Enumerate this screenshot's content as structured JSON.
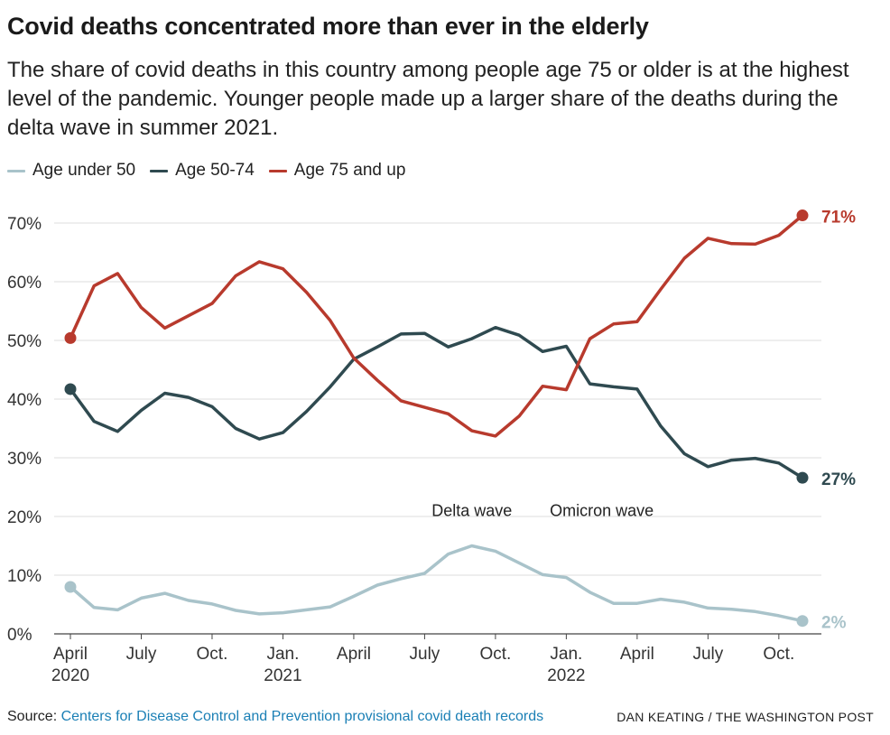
{
  "title": "Covid deaths concentrated more than ever in the elderly",
  "subtitle": "The share of covid deaths in this country among people age 75 or older is at the highest level of the pandemic. Younger people made up a larger share of the deaths during the delta wave in summer 2021.",
  "footer": {
    "source_label": "Source:",
    "source_link": "Centers for Disease Control and Prevention provisional covid death records",
    "credit": "DAN KEATING / THE WASHINGTON POST"
  },
  "chart_data": {
    "type": "line",
    "ylim": [
      0,
      70
    ],
    "yticks": [
      0,
      10,
      20,
      30,
      40,
      50,
      60,
      70
    ],
    "ytick_labels": [
      "0%",
      "10%",
      "20%",
      "30%",
      "40%",
      "50%",
      "60%",
      "70%"
    ],
    "xlim": [
      0,
      31
    ],
    "xticks": [
      {
        "x": 0,
        "label": "April",
        "year": "2020"
      },
      {
        "x": 3,
        "label": "July",
        "year": ""
      },
      {
        "x": 6,
        "label": "Oct.",
        "year": ""
      },
      {
        "x": 9,
        "label": "Jan.",
        "year": "2021"
      },
      {
        "x": 12,
        "label": "April",
        "year": ""
      },
      {
        "x": 15,
        "label": "July",
        "year": ""
      },
      {
        "x": 18,
        "label": "Oct.",
        "year": ""
      },
      {
        "x": 21,
        "label": "Jan.",
        "year": "2022"
      },
      {
        "x": 24,
        "label": "April",
        "year": ""
      },
      {
        "x": 27,
        "label": "July",
        "year": ""
      },
      {
        "x": 30,
        "label": "Oct.",
        "year": ""
      }
    ],
    "grid": true,
    "legend_position": "top-left",
    "annotations": [
      {
        "text": "Delta wave",
        "x": 17,
        "y": 21
      },
      {
        "text": "Omicron wave",
        "x": 22.5,
        "y": 21
      }
    ],
    "series": [
      {
        "name": "Age under 50",
        "color": "#a9c3ca",
        "end_label": "2%",
        "points": [
          [
            0,
            8.0
          ],
          [
            1,
            4.5
          ],
          [
            2,
            4.1
          ],
          [
            3,
            6.1
          ],
          [
            4,
            6.9
          ],
          [
            5,
            5.7
          ],
          [
            6,
            5.1
          ],
          [
            7,
            4.0
          ],
          [
            8,
            3.4
          ],
          [
            9,
            3.6
          ],
          [
            10,
            4.1
          ],
          [
            11,
            4.6
          ],
          [
            12,
            6.4
          ],
          [
            13,
            8.3
          ],
          [
            14,
            9.4
          ],
          [
            15,
            10.3
          ],
          [
            16,
            13.6
          ],
          [
            17,
            15.0
          ],
          [
            18,
            14.1
          ],
          [
            19,
            12.1
          ],
          [
            20,
            10.1
          ],
          [
            21,
            9.6
          ],
          [
            22,
            7.1
          ],
          [
            23,
            5.2
          ],
          [
            24,
            5.2
          ],
          [
            25,
            5.9
          ],
          [
            26,
            5.4
          ],
          [
            27,
            4.4
          ],
          [
            28,
            4.2
          ],
          [
            29,
            3.8
          ],
          [
            30,
            3.1
          ],
          [
            31,
            2.2
          ]
        ]
      },
      {
        "name": "Age 50-74",
        "color": "#2f4a50",
        "end_label": "27%",
        "points": [
          [
            0,
            41.7
          ],
          [
            1,
            36.2
          ],
          [
            2,
            34.5
          ],
          [
            3,
            38.1
          ],
          [
            4,
            41.0
          ],
          [
            5,
            40.3
          ],
          [
            6,
            38.7
          ],
          [
            7,
            35.0
          ],
          [
            8,
            33.2
          ],
          [
            9,
            34.3
          ],
          [
            10,
            37.9
          ],
          [
            11,
            42.1
          ],
          [
            12,
            46.8
          ],
          [
            13,
            48.9
          ],
          [
            14,
            51.1
          ],
          [
            15,
            51.2
          ],
          [
            16,
            48.9
          ],
          [
            17,
            50.3
          ],
          [
            18,
            52.2
          ],
          [
            19,
            50.9
          ],
          [
            20,
            48.1
          ],
          [
            21,
            49.0
          ],
          [
            22,
            42.6
          ],
          [
            23,
            42.1
          ],
          [
            24,
            41.7
          ],
          [
            25,
            35.4
          ],
          [
            26,
            30.7
          ],
          [
            27,
            28.5
          ],
          [
            28,
            29.6
          ],
          [
            29,
            29.9
          ],
          [
            30,
            29.1
          ],
          [
            31,
            26.6
          ]
        ]
      },
      {
        "name": "Age 75 and up",
        "color": "#b83a2d",
        "end_label": "71%",
        "points": [
          [
            0,
            50.4
          ],
          [
            1,
            59.3
          ],
          [
            2,
            61.4
          ],
          [
            3,
            55.6
          ],
          [
            4,
            52.1
          ],
          [
            5,
            54.2
          ],
          [
            6,
            56.3
          ],
          [
            7,
            61.0
          ],
          [
            8,
            63.4
          ],
          [
            9,
            62.2
          ],
          [
            10,
            58.2
          ],
          [
            11,
            53.4
          ],
          [
            12,
            47.0
          ],
          [
            13,
            43.2
          ],
          [
            14,
            39.7
          ],
          [
            15,
            38.6
          ],
          [
            16,
            37.5
          ],
          [
            17,
            34.6
          ],
          [
            18,
            33.7
          ],
          [
            19,
            37.1
          ],
          [
            20,
            42.2
          ],
          [
            21,
            41.6
          ],
          [
            22,
            50.3
          ],
          [
            23,
            52.8
          ],
          [
            24,
            53.2
          ],
          [
            25,
            58.7
          ],
          [
            26,
            64.0
          ],
          [
            27,
            67.4
          ],
          [
            28,
            66.5
          ],
          [
            29,
            66.4
          ],
          [
            30,
            67.9
          ],
          [
            31,
            71.3
          ]
        ]
      }
    ]
  }
}
